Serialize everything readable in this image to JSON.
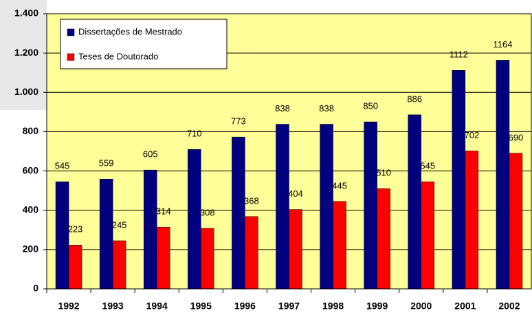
{
  "chart_data": {
    "type": "bar",
    "categories": [
      "1992",
      "1993",
      "1994",
      "1995",
      "1996",
      "1997",
      "1998",
      "1999",
      "2000",
      "2001",
      "2002"
    ],
    "series": [
      {
        "name": "Dissertações de Mestrado",
        "color": "#00007f",
        "values": [
          545,
          559,
          605,
          710,
          773,
          838,
          838,
          850,
          886,
          1112,
          1164
        ]
      },
      {
        "name": "Teses de Doutorado",
        "color": "#ff0000",
        "values": [
          223,
          245,
          314,
          308,
          368,
          404,
          445,
          510,
          545,
          702,
          690
        ]
      }
    ],
    "ylim": [
      0,
      1400
    ],
    "yticks": [
      0,
      200,
      400,
      600,
      800,
      {
        "value": 1000,
        "label": "1.000"
      },
      {
        "value": 1200,
        "label": "1.200"
      },
      {
        "value": 1400,
        "label": "1.400"
      }
    ],
    "grid": true,
    "legend": "upper left",
    "plot_background": "#ffff99"
  }
}
